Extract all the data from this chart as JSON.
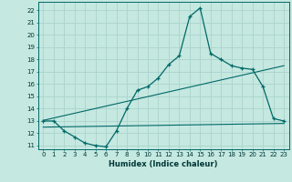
{
  "title": "",
  "xlabel": "Humidex (Indice chaleur)",
  "bg_color": "#c5e8e0",
  "line_color": "#006868",
  "grid_color": "#aad4cc",
  "xlim": [
    -0.5,
    23.5
  ],
  "ylim": [
    10.7,
    22.7
  ],
  "xticks": [
    0,
    1,
    2,
    3,
    4,
    5,
    6,
    7,
    8,
    9,
    10,
    11,
    12,
    13,
    14,
    15,
    16,
    17,
    18,
    19,
    20,
    21,
    22,
    23
  ],
  "yticks": [
    11,
    12,
    13,
    14,
    15,
    16,
    17,
    18,
    19,
    20,
    21,
    22
  ],
  "main_x": [
    0,
    1,
    2,
    3,
    4,
    5,
    6,
    7,
    8,
    9,
    10,
    11,
    12,
    13,
    14,
    15,
    16,
    17,
    18,
    19,
    20,
    21,
    22,
    23
  ],
  "main_y": [
    13.0,
    13.0,
    12.2,
    11.7,
    11.2,
    11.0,
    10.9,
    12.2,
    14.0,
    15.5,
    15.8,
    16.5,
    17.6,
    18.3,
    21.5,
    22.2,
    18.5,
    18.0,
    17.5,
    17.3,
    17.2,
    15.8,
    13.2,
    13.0
  ],
  "line2_x": [
    0,
    23
  ],
  "line2_y": [
    13.05,
    17.5
  ],
  "line3_x": [
    0,
    23
  ],
  "line3_y": [
    12.5,
    12.8
  ],
  "tick_labelsize": 5.0,
  "xlabel_fontsize": 6.0
}
